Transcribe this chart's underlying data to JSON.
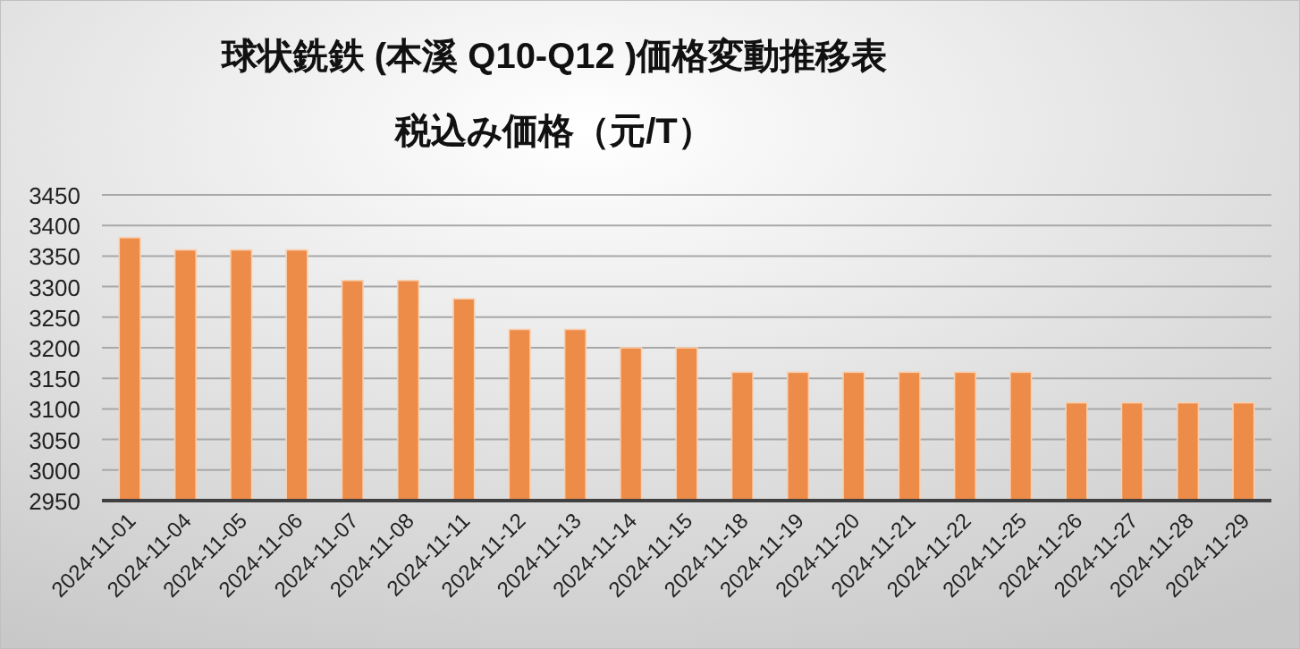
{
  "chart_data": {
    "type": "bar",
    "title": "球状銑鉄 (本溪 Q10-Q12 )価格変動推移表",
    "subtitle": "税込み価格（元/T）",
    "categories": [
      "2024-11-01",
      "2024-11-04",
      "2024-11-05",
      "2024-11-06",
      "2024-11-07",
      "2024-11-08",
      "2024-11-11",
      "2024-11-12",
      "2024-11-13",
      "2024-11-14",
      "2024-11-15",
      "2024-11-18",
      "2024-11-19",
      "2024-11-20",
      "2024-11-21",
      "2024-11-22",
      "2024-11-25",
      "2024-11-26",
      "2024-11-27",
      "2024-11-28",
      "2024-11-29"
    ],
    "values": [
      3380,
      3360,
      3360,
      3360,
      3310,
      3310,
      3280,
      3230,
      3230,
      3200,
      3200,
      3160,
      3160,
      3160,
      3160,
      3160,
      3160,
      3110,
      3110,
      3110,
      3110
    ],
    "color": "#ed8b48",
    "ylim": [
      2950,
      3450
    ],
    "yticks": [
      2950,
      3000,
      3050,
      3100,
      3150,
      3200,
      3250,
      3300,
      3350,
      3400,
      3450
    ],
    "grid": "y"
  }
}
